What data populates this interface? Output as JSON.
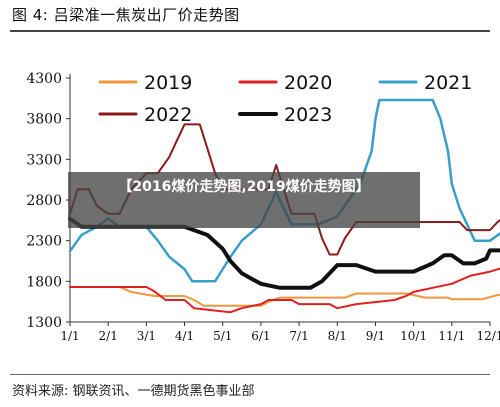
{
  "figure_title": "图 4: 吕梁准一焦炭出厂价走势图",
  "source": "资料来源: 钢联资讯、一德期货黑色事业部",
  "overlay_caption": "【2016煤价走势图,2019煤价走势图】",
  "chart_data": {
    "type": "line",
    "categories": [
      "1/1",
      "2/1",
      "3/1",
      "4/1",
      "5/1",
      "6/1",
      "7/1",
      "8/1",
      "9/1",
      "10/1",
      "11/1",
      "12/1"
    ],
    "ylim": [
      1300,
      4300
    ],
    "yticks": [
      1300,
      1800,
      2300,
      2800,
      3300,
      3800,
      4300
    ],
    "legend_position": "top",
    "series": [
      {
        "name": "2019",
        "color": "#f0963c",
        "width": 2,
        "points": [
          [
            1,
            1730
          ],
          [
            2,
            1730
          ],
          [
            2.3,
            1730
          ],
          [
            2.6,
            1670
          ],
          [
            3.2,
            1620
          ],
          [
            4,
            1620
          ],
          [
            4.25,
            1570
          ],
          [
            4.5,
            1500
          ],
          [
            5,
            1500
          ],
          [
            6,
            1500
          ],
          [
            6.2,
            1550
          ],
          [
            6.5,
            1600
          ],
          [
            7,
            1600
          ],
          [
            7.5,
            1600
          ],
          [
            8.2,
            1600
          ],
          [
            8.5,
            1650
          ],
          [
            9.2,
            1650
          ],
          [
            9.8,
            1650
          ],
          [
            10.3,
            1600
          ],
          [
            10.9,
            1600
          ],
          [
            11,
            1580
          ],
          [
            11.8,
            1580
          ],
          [
            12.1,
            1620
          ],
          [
            12.5,
            1660
          ],
          [
            12.8,
            1740
          ]
        ]
      },
      {
        "name": "2020",
        "color": "#e02020",
        "width": 2,
        "points": [
          [
            1,
            1730
          ],
          [
            2,
            1730
          ],
          [
            3,
            1730
          ],
          [
            3.2,
            1680
          ],
          [
            3.5,
            1570
          ],
          [
            4,
            1570
          ],
          [
            4.25,
            1470
          ],
          [
            5.2,
            1420
          ],
          [
            5.5,
            1470
          ],
          [
            6,
            1520
          ],
          [
            6.2,
            1570
          ],
          [
            6.8,
            1570
          ],
          [
            7,
            1520
          ],
          [
            7.8,
            1520
          ],
          [
            8,
            1470
          ],
          [
            8.5,
            1520
          ],
          [
            9.5,
            1570
          ],
          [
            9.8,
            1620
          ],
          [
            10,
            1670
          ],
          [
            10.5,
            1720
          ],
          [
            11,
            1770
          ],
          [
            11.5,
            1870
          ],
          [
            12,
            1920
          ],
          [
            12.5,
            1990
          ],
          [
            12.8,
            2060
          ]
        ]
      },
      {
        "name": "2021",
        "color": "#3a9ec8",
        "width": 2.5,
        "points": [
          [
            1,
            2170
          ],
          [
            1.3,
            2370
          ],
          [
            1.7,
            2470
          ],
          [
            2,
            2570
          ],
          [
            2.3,
            2470
          ],
          [
            3,
            2470
          ],
          [
            3.3,
            2300
          ],
          [
            3.6,
            2100
          ],
          [
            4,
            1950
          ],
          [
            4.2,
            1800
          ],
          [
            4.8,
            1800
          ],
          [
            5,
            1950
          ],
          [
            5.2,
            2100
          ],
          [
            5.5,
            2300
          ],
          [
            6,
            2500
          ],
          [
            6.2,
            2700
          ],
          [
            6.4,
            2900
          ],
          [
            6.6,
            2700
          ],
          [
            6.8,
            2500
          ],
          [
            7,
            2500
          ],
          [
            7.5,
            2500
          ],
          [
            8,
            2600
          ],
          [
            8.3,
            2800
          ],
          [
            8.6,
            3000
          ],
          [
            8.9,
            3400
          ],
          [
            9,
            3800
          ],
          [
            9.1,
            4030
          ],
          [
            10.5,
            4030
          ],
          [
            10.7,
            3800
          ],
          [
            10.9,
            3400
          ],
          [
            11,
            3000
          ],
          [
            11.2,
            2700
          ],
          [
            11.4,
            2500
          ],
          [
            11.6,
            2300
          ],
          [
            12,
            2300
          ],
          [
            12.3,
            2400
          ],
          [
            12.6,
            2400
          ],
          [
            12.8,
            2550
          ]
        ]
      },
      {
        "name": "2022",
        "color": "#8b1a1a",
        "width": 2,
        "points": [
          [
            1,
            2630
          ],
          [
            1.2,
            2930
          ],
          [
            1.5,
            2930
          ],
          [
            1.7,
            2730
          ],
          [
            2,
            2630
          ],
          [
            2.3,
            2630
          ],
          [
            2.6,
            2930
          ],
          [
            3,
            3130
          ],
          [
            3.3,
            3130
          ],
          [
            3.6,
            3330
          ],
          [
            3.8,
            3530
          ],
          [
            4,
            3730
          ],
          [
            4.4,
            3730
          ],
          [
            4.6,
            3430
          ],
          [
            4.8,
            3130
          ],
          [
            5,
            2930
          ],
          [
            5.3,
            2930
          ],
          [
            5.6,
            2930
          ],
          [
            5.8,
            2930
          ],
          [
            6,
            2930
          ],
          [
            6.2,
            2930
          ],
          [
            6.4,
            3230
          ],
          [
            6.6,
            2930
          ],
          [
            6.8,
            2630
          ],
          [
            7,
            2630
          ],
          [
            7.2,
            2630
          ],
          [
            7.4,
            2630
          ],
          [
            7.6,
            2330
          ],
          [
            7.8,
            2130
          ],
          [
            8,
            2130
          ],
          [
            8.2,
            2330
          ],
          [
            8.5,
            2530
          ],
          [
            9,
            2530
          ],
          [
            9.5,
            2530
          ],
          [
            10,
            2530
          ],
          [
            10.5,
            2530
          ],
          [
            10.8,
            2530
          ],
          [
            11,
            2530
          ],
          [
            11.2,
            2530
          ],
          [
            11.4,
            2430
          ],
          [
            11.6,
            2430
          ],
          [
            12,
            2430
          ],
          [
            12.2,
            2530
          ],
          [
            12.5,
            2630
          ],
          [
            12.8,
            2630
          ]
        ]
      },
      {
        "name": "2023",
        "color": "#111111",
        "width": 4,
        "points": [
          [
            1,
            2570
          ],
          [
            1.3,
            2470
          ],
          [
            2,
            2470
          ],
          [
            3,
            2470
          ],
          [
            4,
            2470
          ],
          [
            4.3,
            2420
          ],
          [
            4.6,
            2370
          ],
          [
            5,
            2200
          ],
          [
            5.2,
            2050
          ],
          [
            5.5,
            1900
          ],
          [
            5.8,
            1820
          ],
          [
            6,
            1770
          ],
          [
            6.5,
            1720
          ],
          [
            7,
            1720
          ],
          [
            7.3,
            1720
          ],
          [
            7.6,
            1800
          ],
          [
            7.8,
            1900
          ],
          [
            8,
            2000
          ],
          [
            8.5,
            2000
          ],
          [
            9,
            1920
          ],
          [
            9.5,
            1920
          ],
          [
            10,
            1920
          ],
          [
            10.5,
            2020
          ],
          [
            10.8,
            2120
          ],
          [
            11,
            2120
          ],
          [
            11.3,
            2020
          ],
          [
            11.6,
            2020
          ],
          [
            11.9,
            2080
          ],
          [
            12,
            2180
          ],
          [
            12.4,
            2180
          ]
        ]
      }
    ]
  }
}
